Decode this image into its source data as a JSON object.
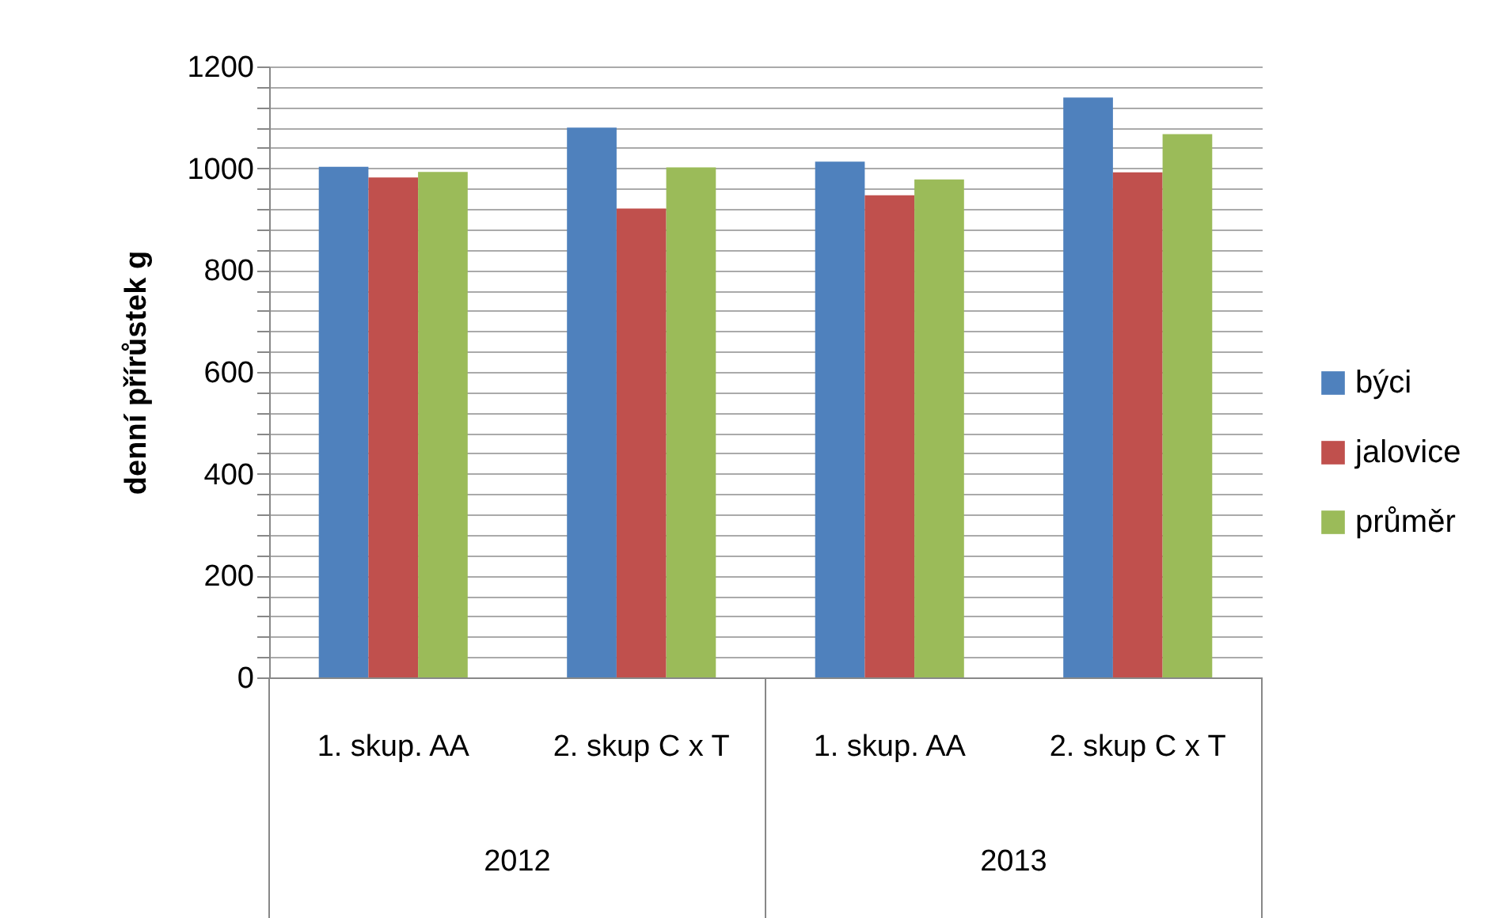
{
  "chart_data": {
    "type": "bar",
    "ylabel": "denní přírůstek g",
    "categories": [
      "1. skup. AA",
      "2. skup C x T",
      "1. skup. AA",
      "2. skup C x T"
    ],
    "annotations": [
      "2012",
      "2013"
    ],
    "series": [
      {
        "name": "býci",
        "color": "#4f81bd",
        "values": [
          1003,
          1080,
          1013,
          1139
        ]
      },
      {
        "name": "jalovice",
        "color": "#c0504d",
        "values": [
          982,
          921,
          947,
          992
        ]
      },
      {
        "name": "průměr",
        "color": "#9bbb59",
        "values": [
          993,
          1002,
          978,
          1067
        ]
      }
    ],
    "ylim": [
      0,
      1200
    ],
    "yticks": [
      0,
      {
        "value": 40,
        "label": null
      },
      {
        "value": 80,
        "label": null
      },
      {
        "value": 120,
        "label": null
      },
      {
        "value": 160,
        "label": null
      },
      200,
      {
        "value": 240,
        "label": null
      },
      {
        "value": 280,
        "label": null
      },
      {
        "value": 320,
        "label": null
      },
      {
        "value": 360,
        "label": null
      },
      400,
      {
        "value": 440,
        "label": null
      },
      {
        "value": 480,
        "label": null
      },
      {
        "value": 520,
        "label": null
      },
      {
        "value": 560,
        "label": null
      },
      600,
      {
        "value": 640,
        "label": null
      },
      {
        "value": 680,
        "label": null
      },
      {
        "value": 720,
        "label": null
      },
      {
        "value": 760,
        "label": null
      },
      800,
      {
        "value": 840,
        "label": null
      },
      {
        "value": 880,
        "label": null
      },
      {
        "value": 920,
        "label": null
      },
      {
        "value": 960,
        "label": null
      },
      1000,
      {
        "value": 1040,
        "label": null
      },
      {
        "value": 1080,
        "label": null
      },
      {
        "value": 1120,
        "label": null
      },
      {
        "value": 1160,
        "label": null
      },
      1200
    ],
    "grid": true,
    "legend": "right"
  }
}
